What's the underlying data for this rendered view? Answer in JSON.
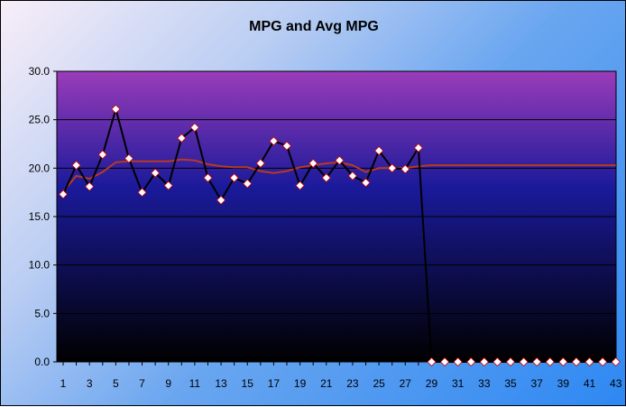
{
  "chart_data": {
    "type": "line",
    "title": "MPG and Avg MPG",
    "xlabel": "",
    "ylabel": "",
    "ylim": [
      0,
      30
    ],
    "yticks": [
      "0.0",
      "5.0",
      "10.0",
      "15.0",
      "20.0",
      "25.0",
      "30.0"
    ],
    "x": [
      1,
      2,
      3,
      4,
      5,
      6,
      7,
      8,
      9,
      10,
      11,
      12,
      13,
      14,
      15,
      16,
      17,
      18,
      19,
      20,
      21,
      22,
      23,
      24,
      25,
      26,
      27,
      28,
      29,
      30,
      31,
      32,
      33,
      34,
      35,
      36,
      37,
      38,
      39,
      40,
      41,
      42,
      43
    ],
    "xtick_labels": [
      "1",
      "3",
      "5",
      "7",
      "9",
      "11",
      "13",
      "15",
      "17",
      "19",
      "21",
      "23",
      "25",
      "27",
      "29",
      "31",
      "33",
      "35",
      "37",
      "39",
      "41",
      "43"
    ],
    "grid": true,
    "legend": "none",
    "series": [
      {
        "color": "#000000",
        "marker_fill": "#ffffff",
        "marker_edge": "#cc0000",
        "values": [
          17.3,
          20.3,
          18.1,
          21.4,
          26.1,
          21.0,
          17.5,
          19.5,
          18.2,
          23.1,
          24.2,
          19.0,
          16.7,
          19.0,
          18.4,
          20.5,
          22.8,
          22.3,
          18.2,
          20.5,
          19.0,
          20.8,
          19.2,
          18.5,
          21.8,
          20.0,
          19.9,
          22.1,
          0,
          0,
          0,
          0,
          0,
          0,
          0,
          0,
          0,
          0,
          0,
          0,
          0,
          0,
          0
        ]
      },
      {
        "color": "#b83a1e",
        "values": [
          17.6,
          19.2,
          18.9,
          19.6,
          20.6,
          20.7,
          20.7,
          20.7,
          20.7,
          20.9,
          20.8,
          20.4,
          20.2,
          20.1,
          20.1,
          19.7,
          19.5,
          19.7,
          20.1,
          20.3,
          20.5,
          20.6,
          20.3,
          19.6,
          20.0,
          20.0,
          20.0,
          20.2,
          20.3,
          20.3,
          20.3,
          20.3,
          20.3,
          20.3,
          20.3,
          20.3,
          20.3,
          20.3,
          20.3,
          20.3,
          20.3,
          20.3,
          20.3
        ]
      }
    ],
    "plot_background_gradient": [
      "#9b3cb9",
      "#1a1a9a",
      "#000000"
    ]
  }
}
